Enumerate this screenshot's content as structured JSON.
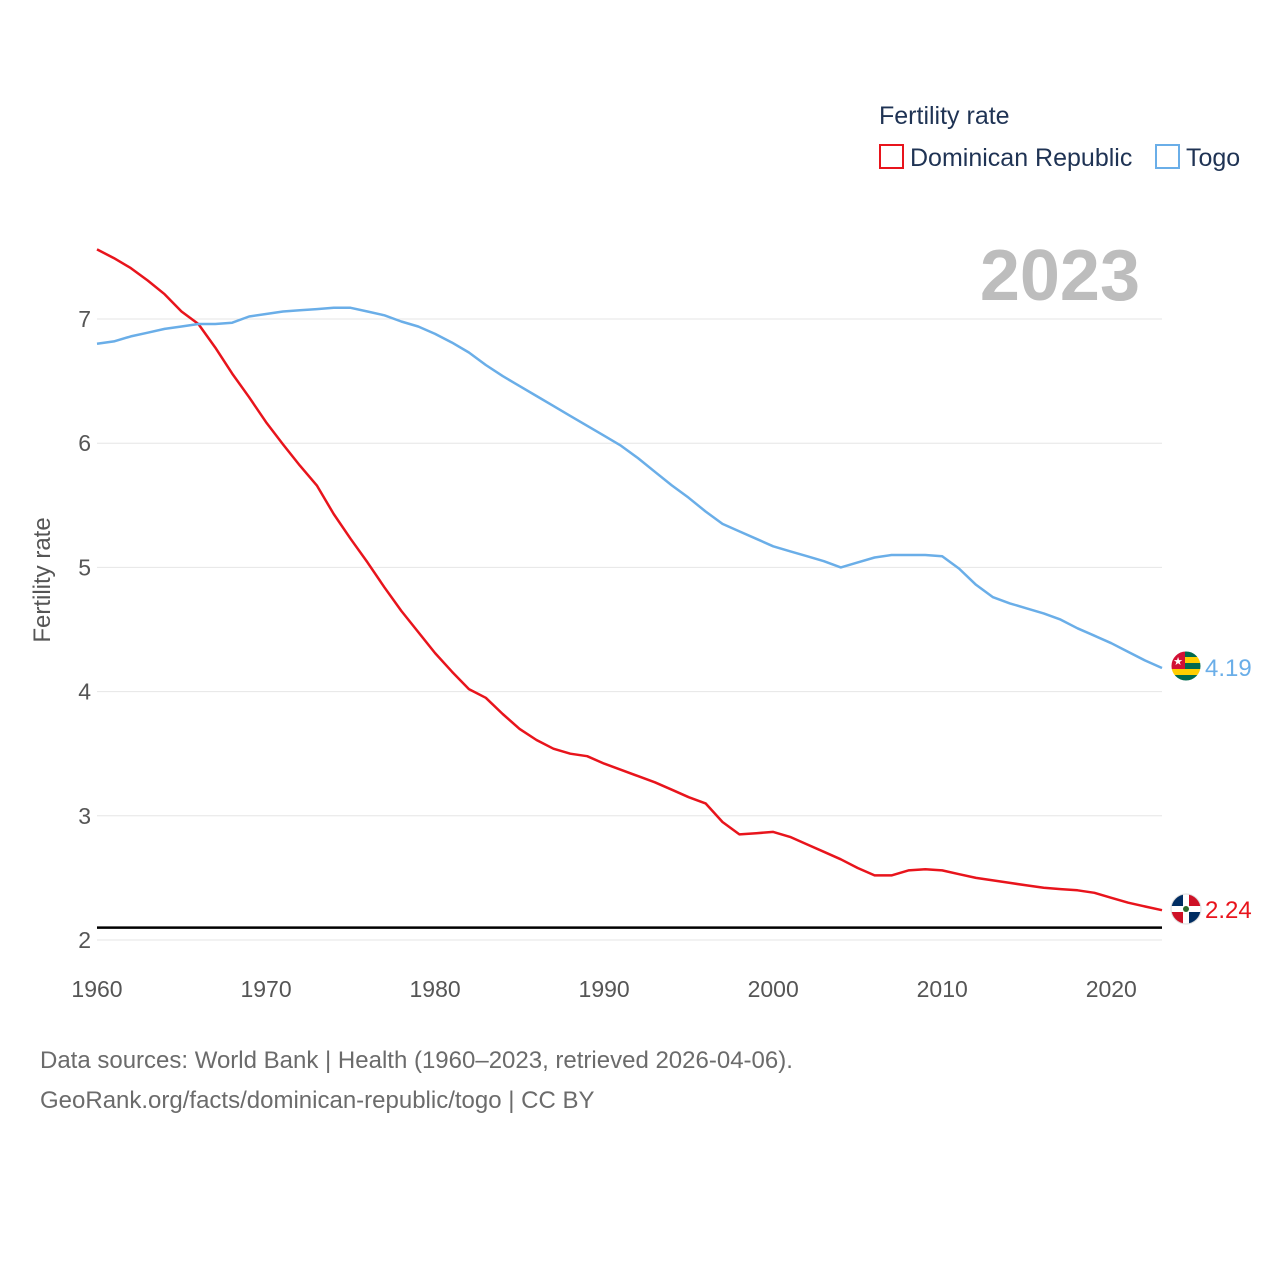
{
  "chart_data": {
    "type": "line",
    "legend": {
      "title": "Fertility rate",
      "position": "top-right"
    },
    "year_label": "2023",
    "ylabel": "Fertility rate",
    "xlabel": "",
    "xlim": [
      1960,
      2023
    ],
    "ylim": [
      2,
      7.6
    ],
    "x_ticks": [
      1960,
      1970,
      1980,
      1990,
      2000,
      2010,
      2020
    ],
    "y_ticks": [
      2,
      3,
      4,
      5,
      6,
      7
    ],
    "reference_line": {
      "value": 2.1,
      "color": "#000000"
    },
    "x": [
      1960,
      1961,
      1962,
      1963,
      1964,
      1965,
      1966,
      1967,
      1968,
      1969,
      1970,
      1971,
      1972,
      1973,
      1974,
      1975,
      1976,
      1977,
      1978,
      1979,
      1980,
      1981,
      1982,
      1983,
      1984,
      1985,
      1986,
      1987,
      1988,
      1989,
      1990,
      1991,
      1992,
      1993,
      1994,
      1995,
      1996,
      1997,
      1998,
      1999,
      2000,
      2001,
      2002,
      2003,
      2004,
      2005,
      2006,
      2007,
      2008,
      2009,
      2010,
      2011,
      2012,
      2013,
      2014,
      2015,
      2016,
      2017,
      2018,
      2019,
      2020,
      2021,
      2022,
      2023
    ],
    "series": [
      {
        "name": "Dominican Republic",
        "color": "#e8141c",
        "end_label": "2.24",
        "flag": "dominican-republic-flag-icon",
        "values": [
          7.56,
          7.49,
          7.41,
          7.31,
          7.2,
          7.06,
          6.96,
          6.77,
          6.56,
          6.37,
          6.17,
          5.99,
          5.82,
          5.66,
          5.43,
          5.23,
          5.04,
          4.84,
          4.65,
          4.48,
          4.31,
          4.16,
          4.02,
          3.95,
          3.82,
          3.7,
          3.61,
          3.54,
          3.5,
          3.48,
          3.42,
          3.37,
          3.32,
          3.27,
          3.21,
          3.15,
          3.1,
          2.95,
          2.85,
          2.86,
          2.87,
          2.83,
          2.77,
          2.71,
          2.65,
          2.58,
          2.52,
          2.52,
          2.56,
          2.57,
          2.56,
          2.53,
          2.5,
          2.48,
          2.46,
          2.44,
          2.42,
          2.41,
          2.4,
          2.38,
          2.34,
          2.3,
          2.27,
          2.24
        ]
      },
      {
        "name": "Togo",
        "color": "#6aaee8",
        "end_label": "4.19",
        "flag": "togo-flag-icon",
        "values": [
          6.8,
          6.82,
          6.86,
          6.89,
          6.92,
          6.94,
          6.96,
          6.96,
          6.97,
          7.02,
          7.04,
          7.06,
          7.07,
          7.08,
          7.09,
          7.09,
          7.06,
          7.03,
          6.98,
          6.94,
          6.88,
          6.81,
          6.73,
          6.63,
          6.54,
          6.46,
          6.38,
          6.3,
          6.22,
          6.14,
          6.06,
          5.98,
          5.88,
          5.77,
          5.66,
          5.56,
          5.45,
          5.35,
          5.29,
          5.23,
          5.17,
          5.13,
          5.09,
          5.05,
          5.0,
          5.04,
          5.08,
          5.1,
          5.1,
          5.1,
          5.09,
          4.99,
          4.86,
          4.76,
          4.71,
          4.67,
          4.63,
          4.58,
          4.51,
          4.45,
          4.39,
          4.32,
          4.25,
          4.19
        ]
      }
    ]
  },
  "source": {
    "line1": "Data sources: World Bank | Health (1960–2023, retrieved 2026-04-06).",
    "line2": "GeoRank.org/facts/dominican-republic/togo | CC BY"
  }
}
